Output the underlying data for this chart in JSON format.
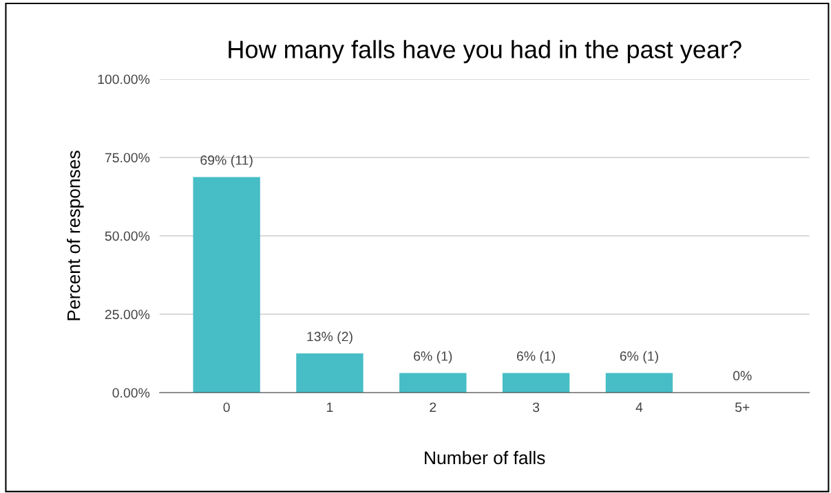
{
  "chart_data": {
    "type": "bar",
    "title": "How many falls have you had in the past year?",
    "xlabel": "Number of falls",
    "ylabel": "Percent of responses",
    "categories": [
      "0",
      "1",
      "2",
      "3",
      "4",
      "5+"
    ],
    "values": [
      68.75,
      12.5,
      6.25,
      6.25,
      6.25,
      0
    ],
    "value_labels": [
      "69% (11)",
      "13% (2)",
      "6% (1)",
      "6% (1)",
      "6% (1)",
      "0%"
    ],
    "color": "#47bdc6",
    "ylim": [
      0,
      100
    ],
    "yticks": [
      {
        "value": 0,
        "label": "0.00%"
      },
      {
        "value": 25,
        "label": "25.00%"
      },
      {
        "value": 50,
        "label": "50.00%"
      },
      {
        "value": 75,
        "label": "75.00%"
      },
      {
        "value": 100,
        "label": "100.00%"
      }
    ],
    "grid": "y",
    "legend": false
  }
}
